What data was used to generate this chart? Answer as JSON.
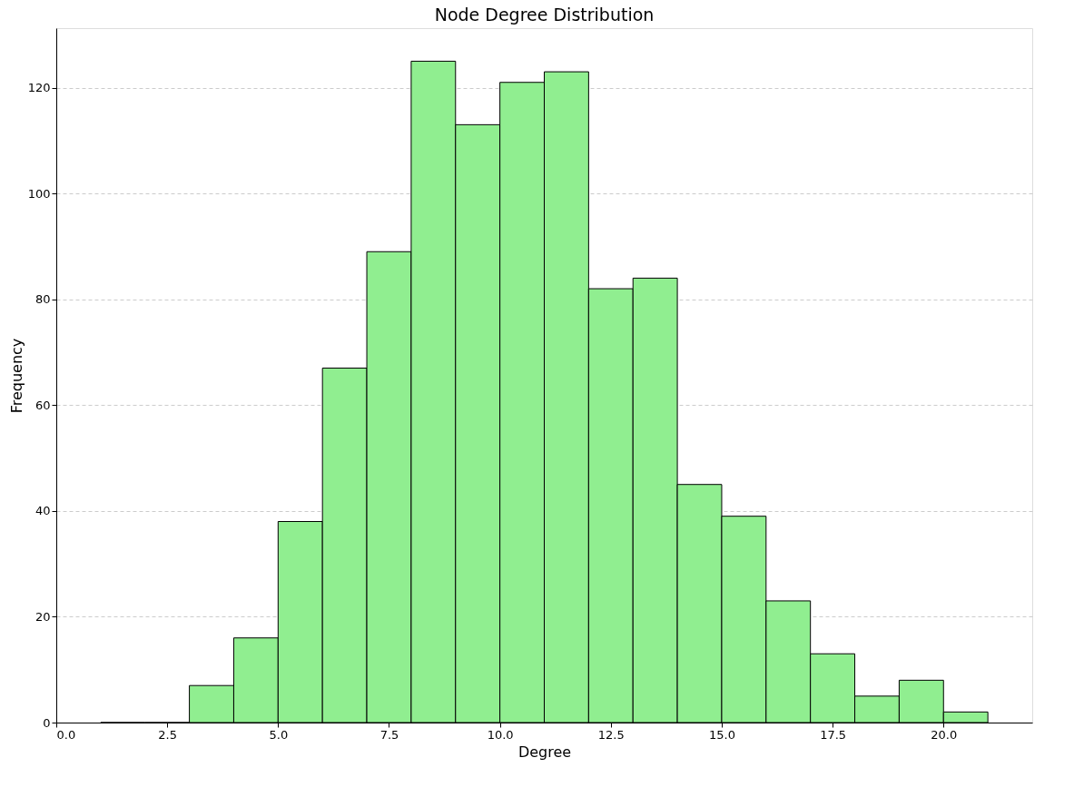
{
  "chart_data": {
    "type": "histogram",
    "title": "Node Degree Distribution",
    "xlabel": "Degree",
    "ylabel": "Frequency",
    "bins": [
      1,
      2,
      3,
      4,
      5,
      6,
      7,
      8,
      9,
      10,
      11,
      12,
      13,
      14,
      15,
      16,
      17,
      18,
      19,
      20,
      21
    ],
    "values": [
      0,
      0,
      7,
      16,
      38,
      67,
      89,
      125,
      113,
      121,
      123,
      82,
      84,
      45,
      39,
      23,
      13,
      5,
      8,
      2
    ],
    "color": "#90ee90",
    "xlim": [
      0,
      22
    ],
    "ylim": [
      0,
      131.25
    ],
    "xticks": [
      {
        "value": 0,
        "label": "0.0"
      },
      {
        "value": 2.5,
        "label": "2.5"
      },
      {
        "value": 5,
        "label": "5.0"
      },
      {
        "value": 7.5,
        "label": "7.5"
      },
      {
        "value": 10,
        "label": "10.0"
      },
      {
        "value": 12.5,
        "label": "12.5"
      },
      {
        "value": 15,
        "label": "15.0"
      },
      {
        "value": 17.5,
        "label": "17.5"
      },
      {
        "value": 20,
        "label": "20.0"
      }
    ],
    "yticks": [
      0,
      20,
      40,
      60,
      80,
      100,
      120
    ],
    "grid": "y"
  }
}
